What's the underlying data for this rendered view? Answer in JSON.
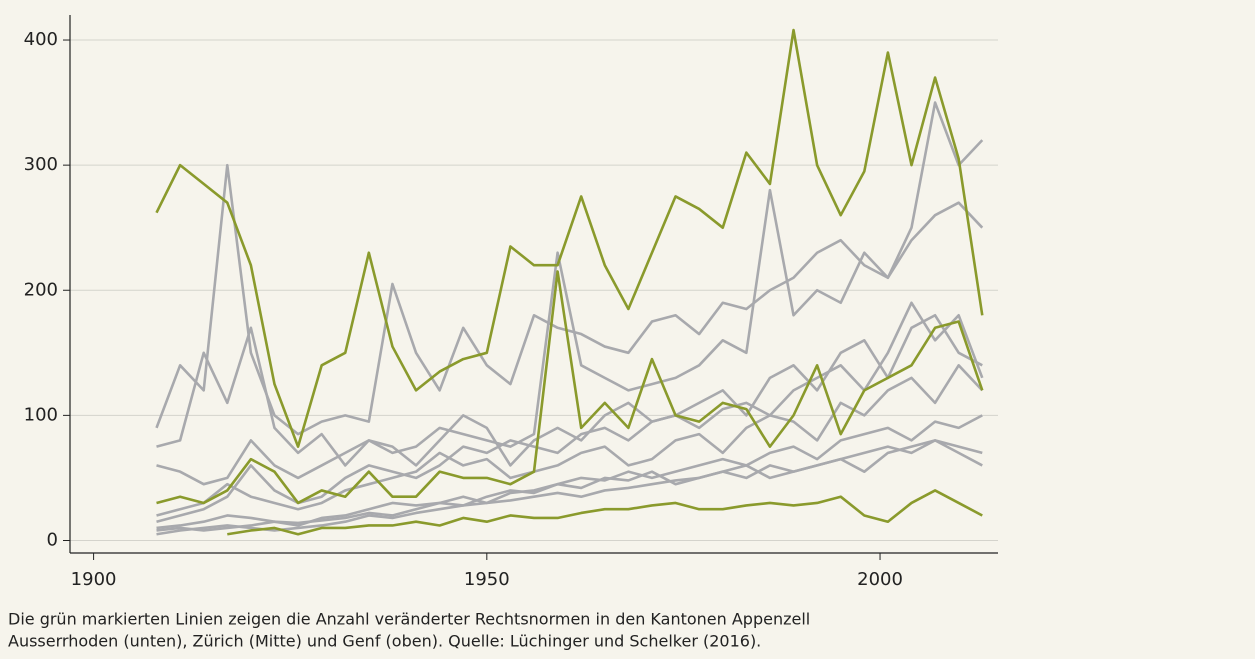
{
  "chart_data": {
    "type": "line",
    "caption": [
      "Die grün markierten Linien zeigen die Anzahl veränderter Rechtsnormen in den Kantonen Appenzell",
      "Ausserrhoden (unten), Zürich (Mitte) und Genf (oben). Quelle: Lüchinger und Schelker (2016)."
    ],
    "x": [
      1908,
      1911,
      1914,
      1917,
      1920,
      1923,
      1926,
      1929,
      1932,
      1935,
      1938,
      1941,
      1944,
      1947,
      1950,
      1953,
      1956,
      1959,
      1962,
      1965,
      1968,
      1971,
      1974,
      1977,
      1980,
      1983,
      1986,
      1989,
      1992,
      1995,
      1998,
      2001,
      2004,
      2007,
      2010,
      2013
    ],
    "xlim": [
      1897,
      2015
    ],
    "xticks": [
      1900,
      1950,
      2000
    ],
    "ylim": [
      -10,
      420
    ],
    "yticks": [
      0,
      100,
      200,
      300,
      400
    ],
    "grid": true,
    "series": [
      {
        "color": "#a8a9ad",
        "values": [
          90,
          140,
          120,
          300,
          150,
          100,
          85,
          95,
          100,
          95,
          205,
          150,
          120,
          170,
          140,
          125,
          180,
          170,
          165,
          155,
          150,
          175,
          180,
          165,
          190,
          185,
          200,
          210,
          230,
          240,
          220,
          210,
          240,
          260,
          270,
          250
        ]
      },
      {
        "color": "#a8a9ad",
        "values": [
          75,
          80,
          150,
          110,
          170,
          90,
          70,
          85,
          60,
          80,
          70,
          75,
          90,
          85,
          80,
          75,
          85,
          230,
          140,
          130,
          120,
          125,
          130,
          140,
          160,
          150,
          280,
          180,
          200,
          190,
          230,
          210,
          250,
          350,
          300,
          320
        ]
      },
      {
        "color": "#a8a9ad",
        "values": [
          60,
          55,
          45,
          50,
          80,
          60,
          50,
          60,
          70,
          80,
          75,
          60,
          80,
          100,
          90,
          60,
          80,
          90,
          80,
          100,
          110,
          95,
          100,
          110,
          120,
          100,
          130,
          140,
          120,
          150,
          160,
          130,
          170,
          180,
          150,
          140
        ]
      },
      {
        "color": "#a8a9ad",
        "values": [
          20,
          25,
          30,
          45,
          35,
          30,
          25,
          30,
          40,
          45,
          50,
          55,
          70,
          60,
          65,
          50,
          55,
          60,
          70,
          75,
          60,
          65,
          80,
          85,
          70,
          90,
          100,
          95,
          80,
          110,
          100,
          120,
          130,
          110,
          140,
          120
        ]
      },
      {
        "color": "#a8a9ad",
        "values": [
          10,
          12,
          15,
          20,
          18,
          15,
          12,
          18,
          20,
          25,
          30,
          28,
          30,
          35,
          30,
          38,
          40,
          45,
          50,
          48,
          55,
          50,
          55,
          60,
          65,
          60,
          70,
          75,
          65,
          80,
          85,
          90,
          80,
          95,
          90,
          100
        ]
      },
      {
        "color": "#a8a9ad",
        "values": [
          5,
          8,
          10,
          12,
          10,
          8,
          10,
          12,
          15,
          20,
          18,
          22,
          25,
          28,
          30,
          32,
          35,
          38,
          35,
          40,
          42,
          45,
          48,
          50,
          55,
          50,
          60,
          55,
          60,
          65,
          70,
          75,
          70,
          80,
          75,
          70
        ]
      },
      {
        "color": "#a8a9ad",
        "values": [
          15,
          20,
          25,
          35,
          60,
          40,
          30,
          35,
          50,
          60,
          55,
          50,
          60,
          75,
          70,
          80,
          75,
          70,
          85,
          90,
          80,
          95,
          100,
          90,
          105,
          110,
          100,
          120,
          130,
          140,
          120,
          150,
          190,
          160,
          180,
          130
        ]
      },
      {
        "color": "#a8a9ad",
        "values": [
          8,
          10,
          8,
          10,
          12,
          15,
          14,
          16,
          18,
          22,
          20,
          25,
          30,
          28,
          35,
          40,
          38,
          45,
          42,
          50,
          48,
          55,
          45,
          50,
          55,
          60,
          50,
          55,
          60,
          65,
          55,
          70,
          75,
          80,
          70,
          60
        ]
      },
      {
        "color": "#8a9a2c",
        "values": [
          null,
          null,
          null,
          5,
          8,
          10,
          5,
          10,
          10,
          12,
          12,
          15,
          12,
          18,
          15,
          20,
          18,
          18,
          22,
          25,
          25,
          28,
          30,
          25,
          25,
          28,
          30,
          28,
          30,
          35,
          20,
          15,
          30,
          40,
          30,
          20
        ]
      },
      {
        "color": "#8a9a2c",
        "values": [
          30,
          35,
          30,
          40,
          65,
          55,
          30,
          40,
          35,
          55,
          35,
          35,
          55,
          50,
          50,
          45,
          55,
          215,
          90,
          110,
          90,
          145,
          100,
          95,
          110,
          105,
          75,
          100,
          140,
          85,
          120,
          130,
          140,
          170,
          175,
          120
        ]
      },
      {
        "color": "#8a9a2c",
        "values": [
          262,
          300,
          285,
          270,
          220,
          125,
          75,
          140,
          150,
          230,
          155,
          120,
          135,
          145,
          150,
          235,
          220,
          220,
          275,
          220,
          185,
          230,
          275,
          265,
          250,
          310,
          285,
          408,
          300,
          260,
          295,
          390,
          300,
          370,
          305,
          180
        ]
      }
    ]
  }
}
